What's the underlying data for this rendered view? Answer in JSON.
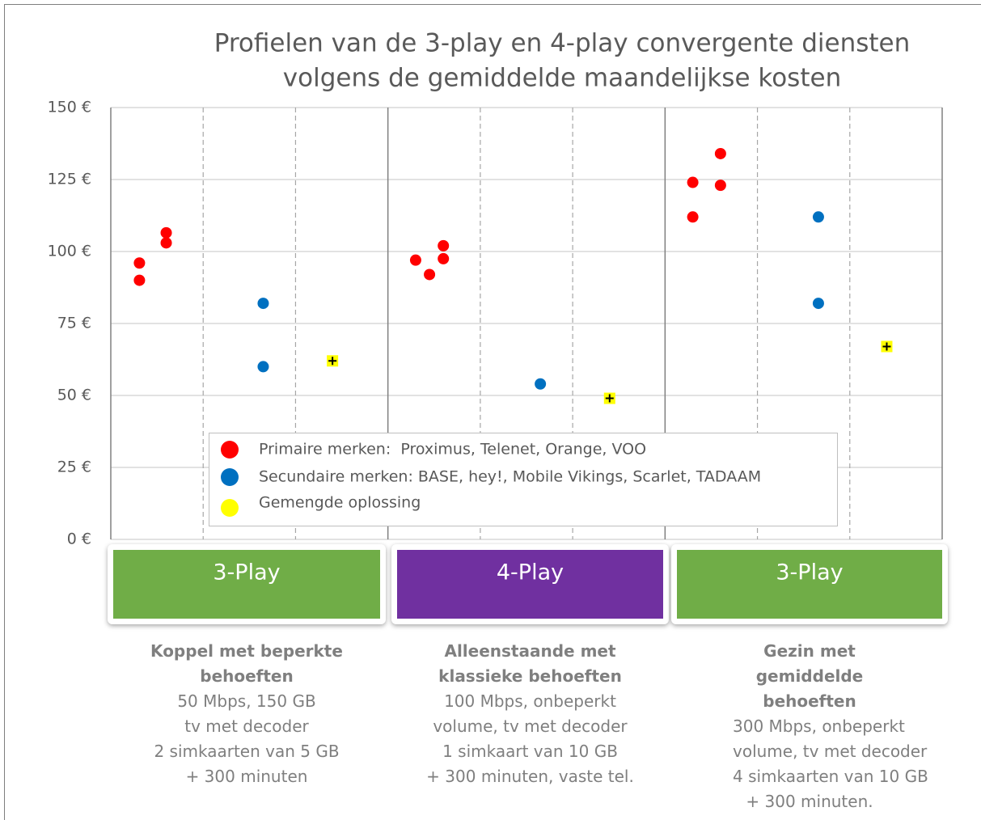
{
  "chart_data": {
    "type": "scatter",
    "title": "Profielen van de 3-play en 4-play convergente diensten",
    "subtitle": "volgens de gemiddelde maandelijkse kosten",
    "xlim": [
      0,
      9
    ],
    "ylim": [
      0,
      150
    ],
    "yticks": [
      {
        "value": 0,
        "label": "0 €"
      },
      {
        "value": 25,
        "label": "25 €"
      },
      {
        "value": 50,
        "label": "50 €"
      },
      {
        "value": 75,
        "label": "75 €"
      },
      {
        "value": 100,
        "label": "100 €"
      },
      {
        "value": 125,
        "label": "125 €"
      },
      {
        "value": 150,
        "label": "150 €"
      }
    ],
    "grid": true,
    "series": [
      {
        "name": "Primaire merken:  Proximus, Telenet, Orange, VOO",
        "color": "#ff0000",
        "marker": "circle",
        "x": [
          0.31,
          0.31,
          0.6,
          0.6,
          3.3,
          3.45,
          3.6,
          3.6,
          6.3,
          6.3,
          6.6,
          6.6
        ],
        "values": [
          96,
          90,
          106.5,
          103,
          97,
          92,
          102,
          97.5,
          124,
          112,
          134,
          123
        ]
      },
      {
        "name": "Secundaire merken: BASE, hey!, Mobile Vikings, Scarlet, TADAAM",
        "color": "#0070c0",
        "marker": "circle",
        "x": [
          1.65,
          1.65,
          4.65,
          7.66,
          7.66
        ],
        "values": [
          82,
          60,
          54,
          112,
          82
        ]
      },
      {
        "name": "Gemengde oplossing",
        "color": "#ffff00",
        "marker": "square-plus",
        "x": [
          2.4,
          5.4,
          8.4
        ],
        "values": [
          62,
          49,
          67
        ]
      }
    ],
    "groups": [
      {
        "label": "3-Play",
        "color": "#70ad47",
        "title": "Koppel met beperkte behoeften",
        "lines": [
          "50 Mbps, 150 GB",
          "tv met decoder",
          "2 simkaarten van 5 GB",
          "+ 300 minuten"
        ]
      },
      {
        "label": "4-Play",
        "color": "#7030a0",
        "title": "Alleenstaande met klassieke behoeften",
        "lines": [
          "100 Mbps, onbeperkt",
          "volume, tv met decoder",
          "1 simkaart van 10 GB",
          "+ 300 minuten, vaste tel."
        ]
      },
      {
        "label": "3-Play",
        "color": "#70ad47",
        "title": "Gezin met gemiddelde behoeften",
        "lines": [
          "300 Mbps, onbeperkt",
          "volume, tv met decoder",
          "4 simkaarten van 10 GB",
          "+ 300 minuten."
        ]
      }
    ]
  }
}
